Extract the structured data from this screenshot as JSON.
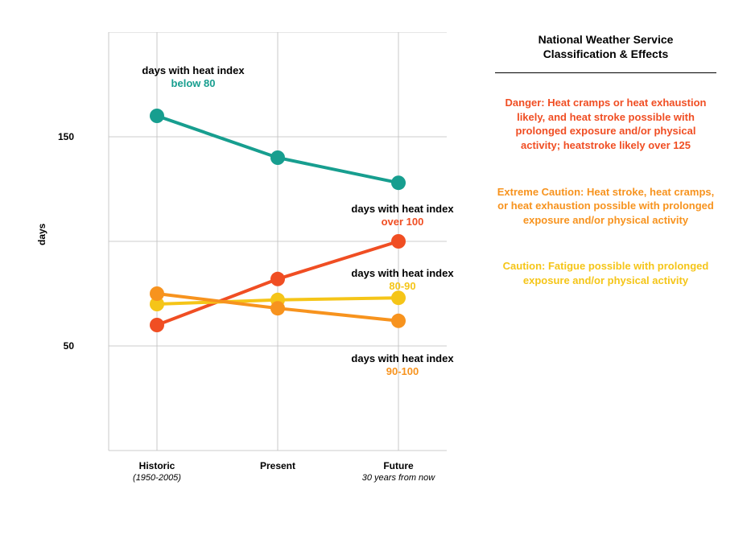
{
  "chart": {
    "type": "line",
    "background_color": "#ffffff",
    "grid_color": "#bdbdbd",
    "grid_stroke_width": 0.8,
    "y_axis": {
      "label": "days",
      "ticks": [
        50,
        150
      ],
      "min": 0,
      "max": 200,
      "label_fontsize": 12
    },
    "x_axis": {
      "categories": [
        {
          "label": "Historic",
          "sub": "(1950-2005)"
        },
        {
          "label": "Present",
          "sub": ""
        },
        {
          "label": "Future",
          "sub": "30 years from now"
        }
      ],
      "label_fontsize": 12
    },
    "marker_radius": 9,
    "line_stroke_width": 4,
    "series": [
      {
        "id": "below80",
        "label_prefix": "days with heat index",
        "label_em": "below 80",
        "color": "#179e8f",
        "values": [
          160,
          140,
          128
        ]
      },
      {
        "id": "over100",
        "label_prefix": "days with heat index",
        "label_em": "over 100",
        "color": "#f04e23",
        "values": [
          60,
          82,
          100
        ]
      },
      {
        "id": "80-90",
        "label_prefix": "days with heat index",
        "label_em": "80-90",
        "color": "#f5c518",
        "values": [
          70,
          72,
          73
        ]
      },
      {
        "id": "90-100",
        "label_prefix": "days with heat index",
        "label_em": "90-100",
        "color": "#f7931e",
        "values": [
          75,
          68,
          62
        ]
      }
    ]
  },
  "legend": {
    "title_line1": "National Weather Service",
    "title_line2": "Classification & Effects",
    "items": [
      {
        "lead": "Danger:",
        "text": " Heat cramps or heat exhaustion likely, and heat stroke possible with prolonged exposure and/or physical activity; heatstroke likely over 125",
        "color": "#f04e23"
      },
      {
        "lead": "Extreme Caution:",
        "text": " Heat stroke, heat cramps, or heat exhaustion possible with prolonged exposure and/or physical activity",
        "color": "#f7931e"
      },
      {
        "lead": "Caution:",
        "text": " Fatigue possible with prolonged exposure and/or physical activity",
        "color": "#f5c518"
      }
    ]
  }
}
